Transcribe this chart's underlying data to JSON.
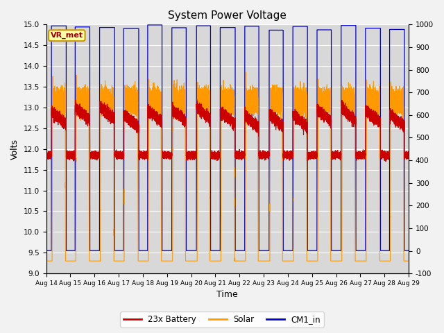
{
  "title": "System Power Voltage",
  "xlabel": "Time",
  "ylabel_left": "Volts",
  "ylim_left": [
    9.0,
    15.0
  ],
  "ylim_right": [
    -100,
    1000
  ],
  "yticks_left": [
    9.0,
    9.5,
    10.0,
    10.5,
    11.0,
    11.5,
    12.0,
    12.5,
    13.0,
    13.5,
    14.0,
    14.5,
    15.0
  ],
  "yticks_right": [
    -100,
    0,
    100,
    200,
    300,
    400,
    500,
    600,
    700,
    800,
    900,
    1000
  ],
  "xtick_labels": [
    "Aug 14",
    "Aug 15",
    "Aug 16",
    "Aug 17",
    "Aug 18",
    "Aug 19",
    "Aug 20",
    "Aug 21",
    "Aug 22",
    "Aug 23",
    "Aug 24",
    "Aug 25",
    "Aug 26",
    "Aug 27",
    "Aug 28",
    "Aug 29"
  ],
  "legend_labels": [
    "23x Battery",
    "Solar",
    "CM1_in"
  ],
  "legend_colors": [
    "#cc0000",
    "#ff9900",
    "#0000cc"
  ],
  "vr_met_label": "VR_met",
  "background_color": "#d8d8d8",
  "grid_color": "#ffffff",
  "cm1_high": 14.95,
  "cm1_low": 9.55,
  "solar_high": 13.1,
  "battery_night": 11.85,
  "battery_day": 12.9
}
